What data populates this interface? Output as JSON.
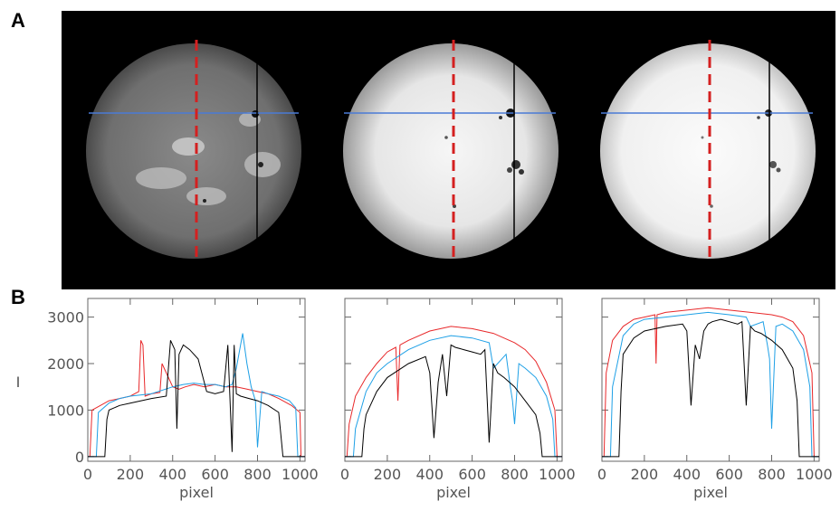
{
  "panels": {
    "a_label": "A",
    "b_label": "B"
  },
  "colors": {
    "red": "#e8282a",
    "blue": "#1ea0e6",
    "black": "#000000",
    "scanline": "#4a7bd6",
    "dashed": "#d42020"
  },
  "chart_data": [
    {
      "type": "line",
      "xlabel": "pixel",
      "ylabel": "I",
      "xlim": [
        0,
        1024
      ],
      "ylim": [
        -100,
        3400
      ],
      "xticks": [
        "0",
        "200",
        "400",
        "600",
        "800",
        "1000"
      ],
      "yticks": [
        "0",
        "1000",
        "2000",
        "3000"
      ],
      "series": [
        {
          "color": "red",
          "x": [
            0,
            10,
            20,
            100,
            150,
            200,
            240,
            250,
            260,
            270,
            300,
            340,
            350,
            400,
            430,
            460,
            500,
            550,
            600,
            650,
            700,
            750,
            800,
            850,
            900,
            960,
            1000,
            1005,
            1015,
            1024
          ],
          "y": [
            0,
            0,
            1000,
            1200,
            1250,
            1300,
            1400,
            2500,
            2400,
            1300,
            1350,
            1380,
            2000,
            1500,
            1450,
            1500,
            1550,
            1500,
            1550,
            1500,
            1500,
            1450,
            1400,
            1350,
            1250,
            1100,
            950,
            0,
            0,
            0
          ]
        },
        {
          "color": "blue",
          "x": [
            0,
            40,
            50,
            100,
            150,
            200,
            300,
            400,
            450,
            500,
            550,
            600,
            650,
            680,
            700,
            730,
            750,
            770,
            790,
            800,
            820,
            850,
            900,
            950,
            980,
            990,
            1024
          ],
          "y": [
            0,
            0,
            950,
            1150,
            1250,
            1300,
            1350,
            1500,
            1550,
            1580,
            1550,
            1550,
            1500,
            1550,
            1900,
            2650,
            2000,
            1500,
            1200,
            200,
            1400,
            1350,
            1300,
            1200,
            1050,
            0,
            0
          ]
        },
        {
          "color": "black",
          "x": [
            0,
            80,
            90,
            100,
            150,
            200,
            300,
            370,
            390,
            410,
            420,
            430,
            450,
            480,
            520,
            560,
            600,
            640,
            660,
            680,
            690,
            700,
            720,
            760,
            800,
            850,
            900,
            920,
            930,
            1024
          ],
          "y": [
            0,
            0,
            800,
            1000,
            1100,
            1150,
            1250,
            1300,
            2500,
            2300,
            600,
            2200,
            2400,
            2300,
            2100,
            1400,
            1350,
            1400,
            2400,
            100,
            2400,
            1350,
            1300,
            1250,
            1200,
            1100,
            950,
            0,
            0,
            0
          ]
        }
      ]
    },
    {
      "type": "line",
      "xlabel": "pixel",
      "ylabel": "",
      "xlim": [
        0,
        1024
      ],
      "ylim": [
        -100,
        3400
      ],
      "xticks": [
        "0",
        "200",
        "400",
        "600",
        "800",
        "1000"
      ],
      "yticks": [],
      "series": [
        {
          "color": "red",
          "x": [
            0,
            10,
            20,
            50,
            100,
            150,
            200,
            240,
            250,
            260,
            300,
            400,
            500,
            600,
            700,
            800,
            850,
            900,
            950,
            990,
            1000,
            1010,
            1024
          ],
          "y": [
            0,
            0,
            700,
            1300,
            1700,
            2000,
            2250,
            2350,
            1200,
            2400,
            2500,
            2700,
            2800,
            2750,
            2650,
            2450,
            2300,
            2050,
            1600,
            1000,
            0,
            0,
            0
          ]
        },
        {
          "color": "blue",
          "x": [
            0,
            40,
            50,
            100,
            150,
            200,
            300,
            400,
            500,
            600,
            680,
            700,
            760,
            780,
            790,
            800,
            820,
            850,
            900,
            950,
            980,
            990,
            1024
          ],
          "y": [
            0,
            0,
            600,
            1400,
            1800,
            2000,
            2300,
            2500,
            2600,
            2550,
            2450,
            1900,
            2200,
            1500,
            1200,
            700,
            2000,
            1900,
            1700,
            1300,
            800,
            0,
            0
          ]
        },
        {
          "color": "black",
          "x": [
            0,
            80,
            90,
            100,
            150,
            200,
            300,
            380,
            400,
            420,
            440,
            460,
            480,
            500,
            520,
            560,
            600,
            640,
            660,
            680,
            700,
            720,
            750,
            800,
            850,
            900,
            920,
            930,
            1024
          ],
          "y": [
            0,
            0,
            600,
            900,
            1400,
            1700,
            2000,
            2150,
            1800,
            400,
            1600,
            2200,
            1300,
            2400,
            2350,
            2300,
            2250,
            2200,
            2300,
            300,
            2000,
            1800,
            1700,
            1500,
            1200,
            900,
            500,
            0,
            0
          ]
        }
      ]
    },
    {
      "type": "line",
      "xlabel": "pixel",
      "ylabel": "",
      "xlim": [
        0,
        1024
      ],
      "ylim": [
        -100,
        3400
      ],
      "xticks": [
        "0",
        "200",
        "400",
        "600",
        "800",
        "1000"
      ],
      "yticks": [],
      "series": [
        {
          "color": "red",
          "x": [
            0,
            10,
            20,
            50,
            100,
            150,
            200,
            250,
            255,
            260,
            300,
            400,
            500,
            600,
            700,
            800,
            850,
            900,
            950,
            990,
            1000,
            1010,
            1024
          ],
          "y": [
            0,
            0,
            1800,
            2500,
            2800,
            2950,
            3000,
            3050,
            2000,
            3050,
            3100,
            3150,
            3200,
            3150,
            3100,
            3050,
            3000,
            2900,
            2600,
            1800,
            0,
            0,
            0
          ]
        },
        {
          "color": "blue",
          "x": [
            0,
            40,
            50,
            100,
            150,
            200,
            300,
            400,
            500,
            600,
            680,
            700,
            760,
            780,
            790,
            800,
            820,
            850,
            900,
            950,
            980,
            990,
            1024
          ],
          "y": [
            0,
            0,
            1500,
            2600,
            2850,
            2950,
            3000,
            3050,
            3100,
            3050,
            3000,
            2800,
            2900,
            2400,
            2100,
            600,
            2800,
            2850,
            2700,
            2300,
            1500,
            0,
            0
          ]
        },
        {
          "color": "black",
          "x": [
            0,
            80,
            90,
            100,
            150,
            200,
            300,
            380,
            400,
            420,
            440,
            460,
            480,
            500,
            520,
            560,
            600,
            640,
            660,
            680,
            700,
            720,
            750,
            800,
            850,
            900,
            920,
            930,
            1024
          ],
          "y": [
            0,
            0,
            1400,
            2200,
            2550,
            2700,
            2800,
            2850,
            2700,
            1100,
            2400,
            2100,
            2700,
            2850,
            2900,
            2950,
            2900,
            2850,
            2900,
            1100,
            2800,
            2700,
            2650,
            2500,
            2300,
            1900,
            1200,
            0,
            0
          ]
        }
      ]
    }
  ]
}
